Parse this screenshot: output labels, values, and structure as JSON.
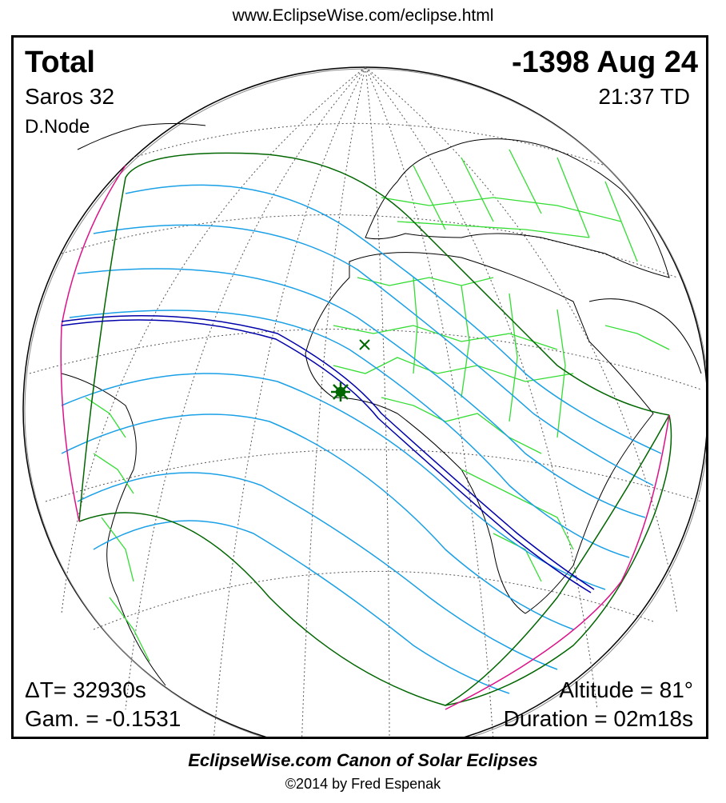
{
  "header": {
    "url": "www.EclipseWise.com/eclipse.html"
  },
  "eclipse": {
    "type": "Total",
    "date": "-1398 Aug 24",
    "saros": "Saros  32",
    "time": "21:37 TD",
    "node": "D.Node",
    "delta_t": "ΔT=  32930s",
    "gamma": "Gam. = -0.1531",
    "altitude": "Altitude = 81°",
    "duration": "Duration = 02m18s"
  },
  "map": {
    "globe_outline_color": "#000000",
    "land_outline_color": "#000000",
    "borders_color": "#33dd33",
    "graticule_color": "#555555",
    "penumbra_limit_color": "#006600",
    "central_path_color": "#0000aa",
    "partial_lines_color": "#1aa0e6",
    "rise_set_color": "#dd1188",
    "greatest_eclipse_marker_color": "#006600",
    "greatest_eclipse_icon": "star-burst-icon",
    "subsolar_marker_icon": "cross-x-icon"
  },
  "footer": {
    "canon": "EclipseWise.com Canon of Solar Eclipses",
    "copyright": "©2014 by Fred Espenak"
  }
}
